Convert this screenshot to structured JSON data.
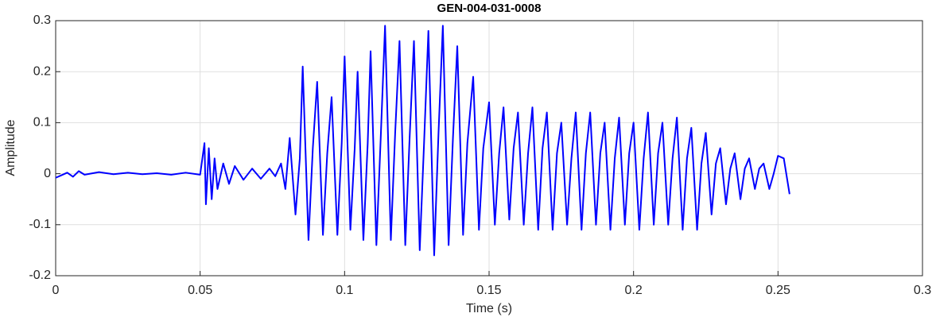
{
  "chart_data": {
    "type": "line",
    "title": "GEN-004-031-0008",
    "x_label": "Time (s)",
    "y_label": "Amplitude",
    "xlim": [
      0,
      0.3
    ],
    "xticks": [
      0,
      0.05,
      0.1,
      0.15,
      0.2,
      0.25,
      0.3
    ],
    "ylim": [
      -0.2,
      0.3
    ],
    "yticks": [
      -0.2,
      -0.1,
      0,
      0.1,
      0.2,
      0.3
    ],
    "grid": true,
    "x": [
      0,
      0.002,
      0.004,
      0.006,
      0.008,
      0.01,
      0.015,
      0.02,
      0.025,
      0.03,
      0.035,
      0.04,
      0.045,
      0.05,
      0.0515,
      0.052,
      0.053,
      0.054,
      0.055,
      0.056,
      0.058,
      0.06,
      0.062,
      0.065,
      0.068,
      0.071,
      0.074,
      0.076,
      0.078,
      0.0795,
      0.081,
      0.083,
      0.0845,
      0.0855,
      0.0875,
      0.089,
      0.0905,
      0.0925,
      0.094,
      0.0955,
      0.0975,
      0.099,
      0.1,
      0.102,
      0.1035,
      0.1045,
      0.1065,
      0.108,
      0.109,
      0.111,
      0.1125,
      0.114,
      0.116,
      0.1175,
      0.119,
      0.121,
      0.1225,
      0.124,
      0.126,
      0.1275,
      0.129,
      0.131,
      0.1325,
      0.134,
      0.136,
      0.1375,
      0.139,
      0.141,
      0.1425,
      0.1445,
      0.1465,
      0.148,
      0.15,
      0.152,
      0.1535,
      0.155,
      0.157,
      0.1585,
      0.16,
      0.162,
      0.1635,
      0.165,
      0.167,
      0.1685,
      0.17,
      0.172,
      0.1735,
      0.175,
      0.177,
      0.1785,
      0.18,
      0.182,
      0.1835,
      0.185,
      0.187,
      0.1885,
      0.19,
      0.192,
      0.1935,
      0.195,
      0.197,
      0.1985,
      0.2,
      0.202,
      0.2035,
      0.205,
      0.207,
      0.2085,
      0.21,
      0.212,
      0.2135,
      0.215,
      0.217,
      0.2185,
      0.22,
      0.222,
      0.2235,
      0.225,
      0.227,
      0.2285,
      0.23,
      0.232,
      0.2335,
      0.235,
      0.237,
      0.2385,
      0.24,
      0.242,
      0.2435,
      0.245,
      0.247,
      0.2485,
      0.25,
      0.252,
      0.254
    ],
    "series": [
      {
        "color": "#0000ff",
        "values": [
          -0.008,
          -0.003,
          0.002,
          -0.006,
          0.005,
          -0.002,
          0.003,
          -0.001,
          0.002,
          -0.001,
          0.001,
          -0.002,
          0.002,
          -0.002,
          0.06,
          -0.06,
          0.05,
          -0.05,
          0.03,
          -0.03,
          0.02,
          -0.02,
          0.015,
          -0.012,
          0.01,
          -0.01,
          0.01,
          -0.005,
          0.02,
          -0.03,
          0.07,
          -0.08,
          0.03,
          0.21,
          -0.13,
          0.05,
          0.18,
          -0.12,
          0.04,
          0.15,
          -0.12,
          0.06,
          0.23,
          -0.11,
          0.05,
          0.2,
          -0.13,
          0.06,
          0.24,
          -0.14,
          0.07,
          0.29,
          -0.13,
          0.08,
          0.26,
          -0.14,
          0.07,
          0.26,
          -0.15,
          0.06,
          0.28,
          -0.16,
          0.08,
          0.29,
          -0.14,
          0.07,
          0.25,
          -0.12,
          0.06,
          0.19,
          -0.11,
          0.05,
          0.14,
          -0.1,
          0.04,
          0.13,
          -0.09,
          0.05,
          0.12,
          -0.1,
          0.04,
          0.13,
          -0.11,
          0.05,
          0.12,
          -0.11,
          0.04,
          0.1,
          -0.1,
          0.03,
          0.12,
          -0.11,
          0.04,
          0.12,
          -0.1,
          0.04,
          0.1,
          -0.11,
          0.03,
          0.11,
          -0.1,
          0.04,
          0.1,
          -0.11,
          0.03,
          0.12,
          -0.1,
          0.04,
          0.1,
          -0.1,
          0.03,
          0.11,
          -0.11,
          0.03,
          0.09,
          -0.11,
          0.02,
          0.08,
          -0.08,
          0.02,
          0.05,
          -0.06,
          0.01,
          0.04,
          -0.05,
          0.01,
          0.03,
          -0.03,
          0.01,
          0.02,
          -0.03,
          0,
          0.035,
          0.03,
          -0.04
        ]
      }
    ]
  }
}
